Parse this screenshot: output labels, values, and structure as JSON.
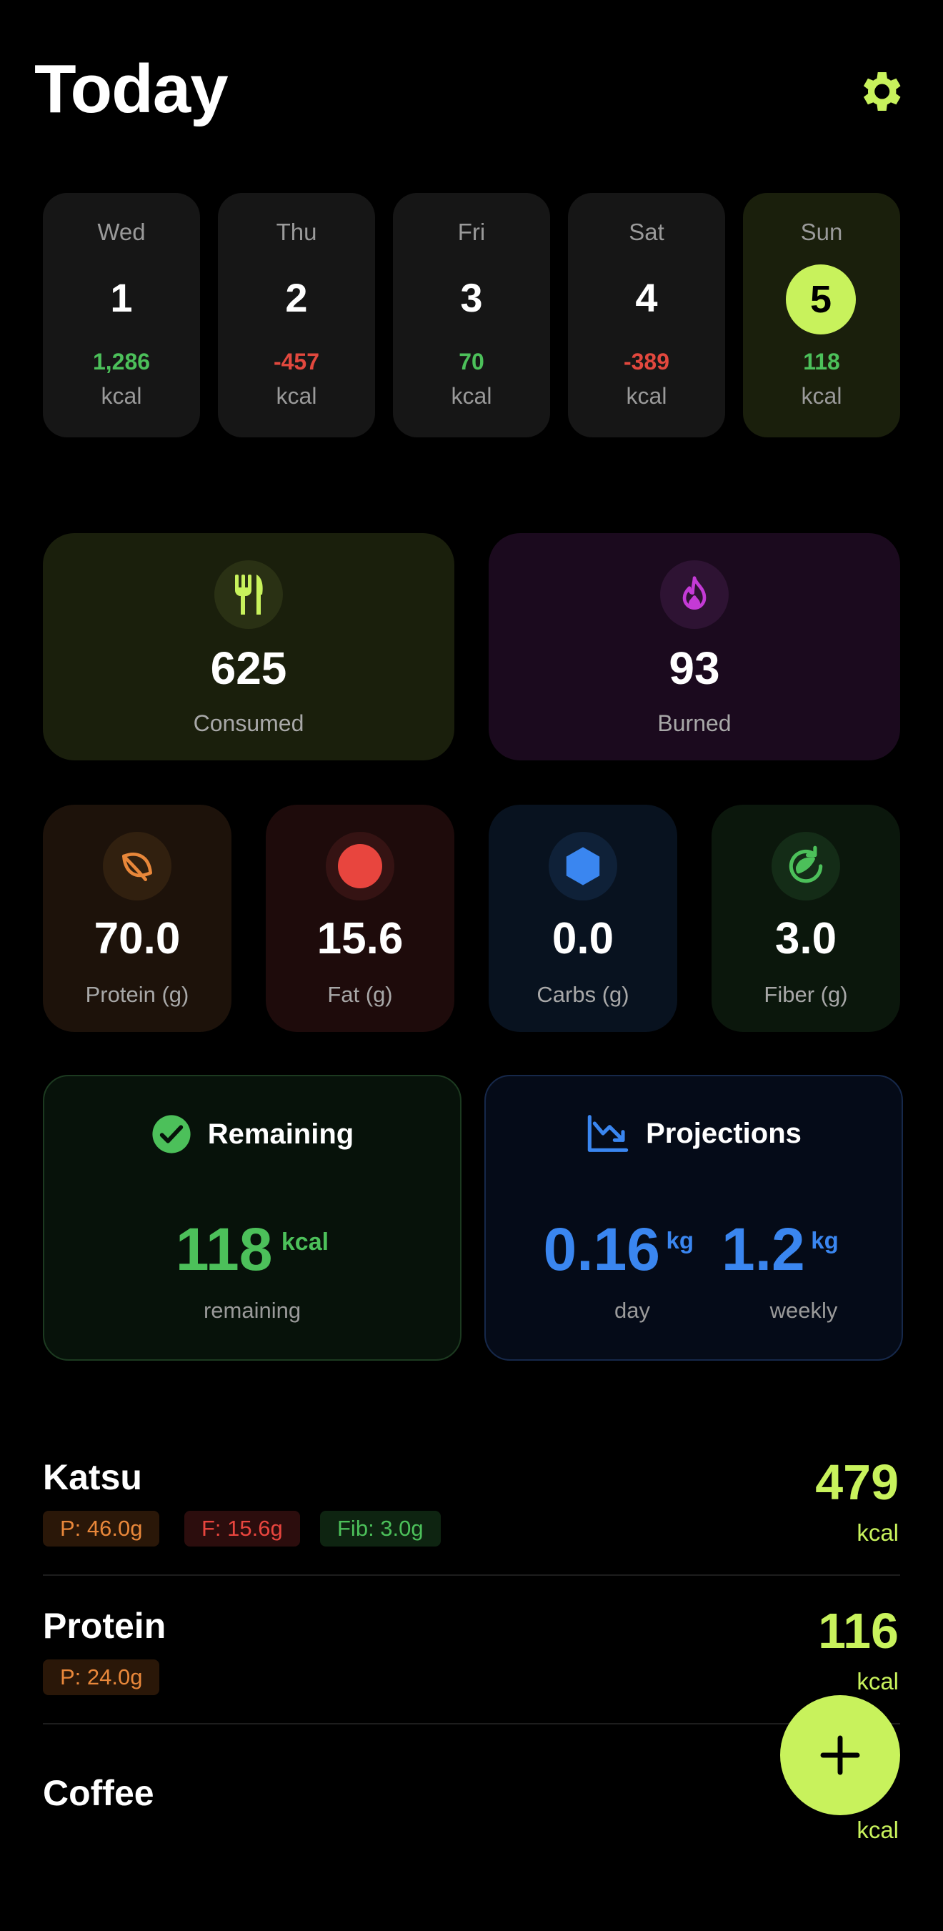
{
  "header": {
    "title": "Today",
    "settings_icon": "gear-icon"
  },
  "days": [
    {
      "name": "Wed",
      "num": "1",
      "value": "1,286",
      "unit": "kcal",
      "status": "positive"
    },
    {
      "name": "Thu",
      "num": "2",
      "value": "-457",
      "unit": "kcal",
      "status": "negative"
    },
    {
      "name": "Fri",
      "num": "3",
      "value": "70",
      "unit": "kcal",
      "status": "positive"
    },
    {
      "name": "Sat",
      "num": "4",
      "value": "-389",
      "unit": "kcal",
      "status": "negative"
    },
    {
      "name": "Sun",
      "num": "5",
      "value": "118",
      "unit": "kcal",
      "status": "positive",
      "selected": true
    }
  ],
  "totals": {
    "consumed": {
      "value": "625",
      "label": "Consumed",
      "icon": "fork-knife-icon"
    },
    "burned": {
      "value": "93",
      "label": "Burned",
      "icon": "flame-icon"
    }
  },
  "macros": [
    {
      "value": "70.0",
      "label": "Protein (g)",
      "icon": "leaf-icon"
    },
    {
      "value": "15.6",
      "label": "Fat (g)",
      "icon": "dot-icon"
    },
    {
      "value": "0.0",
      "label": "Carbs (g)",
      "icon": "hexagon-icon"
    },
    {
      "value": "3.0",
      "label": "Fiber (g)",
      "icon": "recycle-leaf-icon"
    }
  ],
  "remaining": {
    "title": "Remaining",
    "value": "118",
    "unit": "kcal",
    "caption": "remaining"
  },
  "projections": {
    "title": "Projections",
    "day_value": "0.16",
    "day_unit": "kg",
    "day_caption": "day",
    "week_value": "1.2",
    "week_unit": "kg",
    "week_caption": "weekly"
  },
  "foods": [
    {
      "name": "Katsu",
      "kcal": "479",
      "unit": "kcal",
      "chips": [
        "P: 46.0g",
        "F: 15.6g",
        "Fib: 3.0g"
      ]
    },
    {
      "name": "Protein",
      "kcal": "116",
      "unit": "kcal",
      "chips": [
        "P: 24.0g"
      ]
    },
    {
      "name": "Coffee",
      "kcal": "",
      "unit": "kcal",
      "chips": []
    }
  ],
  "colors": {
    "accent": "#c8f25c",
    "positive": "#4cc05a",
    "negative": "#e2483e",
    "protein": "#e8873a",
    "fat": "#e8453e",
    "carbs": "#3a86f0",
    "fiber": "#4cc05a",
    "burned": "#c43ad6"
  }
}
